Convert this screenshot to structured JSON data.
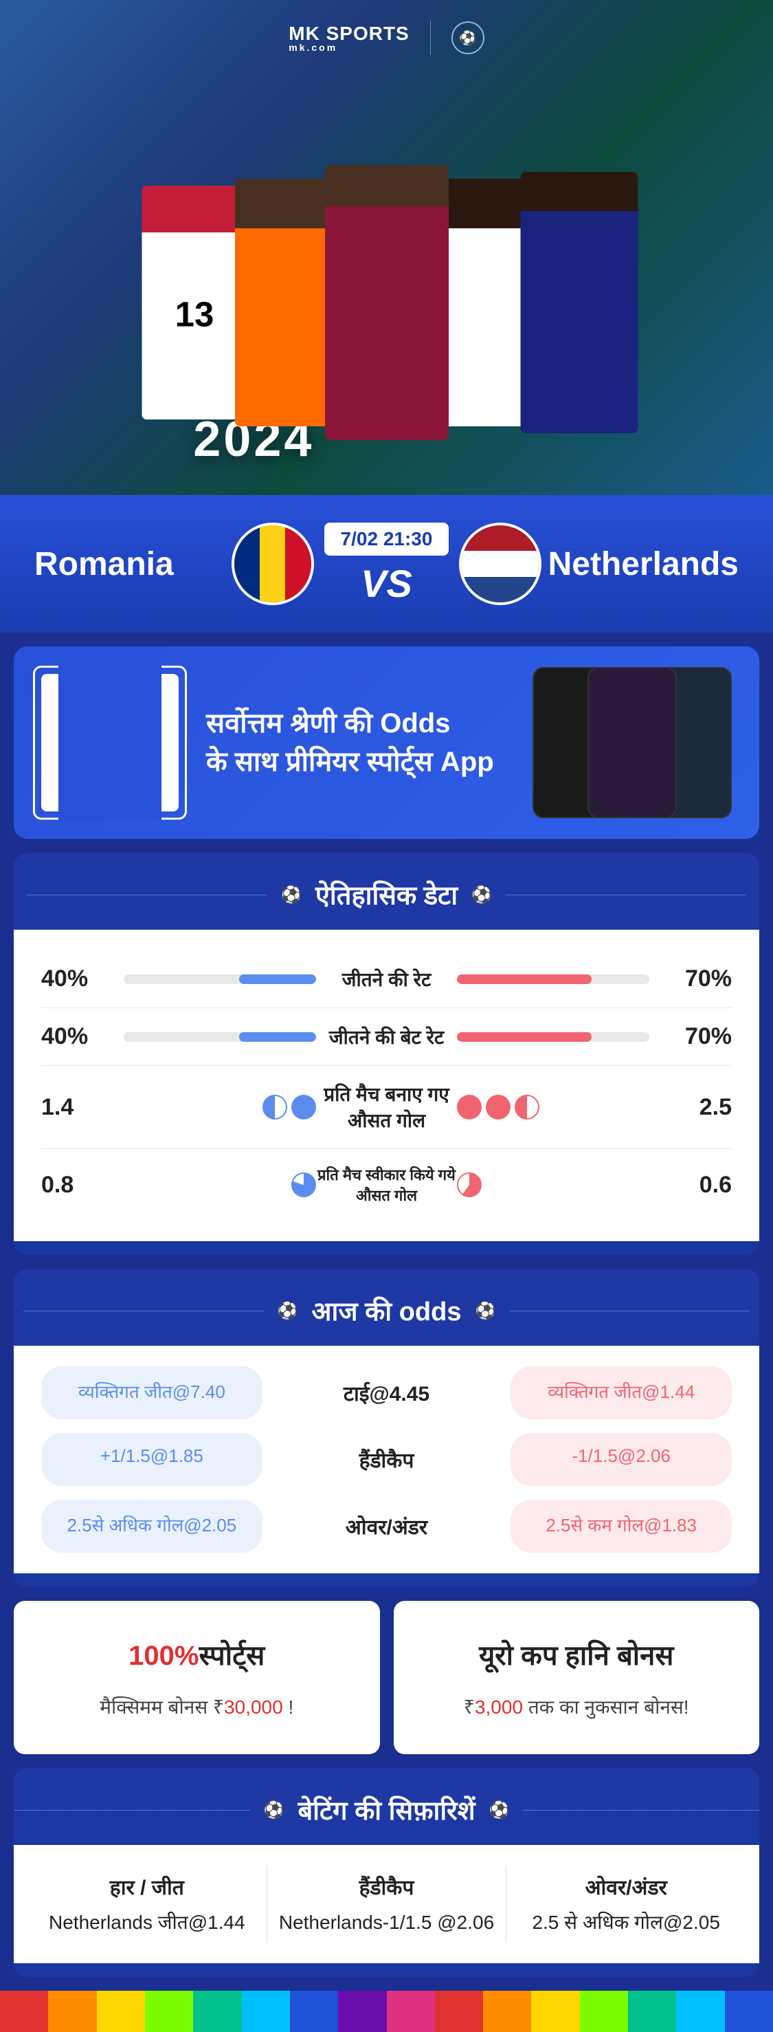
{
  "brand": {
    "name": "MK",
    "tagline": "SPORTS",
    "sub": "mk.com"
  },
  "hero": {
    "title": "UEFA EURO 2024",
    "jersey": "13"
  },
  "match": {
    "team1": "Romania",
    "team2": "Netherlands",
    "datetime": "7/02 21:30",
    "vs": "VS",
    "flag1_colors": [
      "#002b7f",
      "#fcd116",
      "#ce1126"
    ],
    "flag2_colors": [
      "#ae1c28",
      "#ffffff",
      "#21468b"
    ]
  },
  "promo": {
    "line1": "सर्वोत्तम श्रेणी की Odds",
    "line2": "के साथ प्रीमियर स्पोर्ट्स App"
  },
  "sections": {
    "historical": "ऐतिहासिक डेटा",
    "odds": "आज की odds",
    "recommendations": "बेटिंग की सिफ़ारिशें"
  },
  "historical": {
    "rows": [
      {
        "left_val": "40%",
        "left_pct": 40,
        "label": "जीतने की रेट",
        "right_val": "70%",
        "right_pct": 70,
        "type": "bar"
      },
      {
        "left_val": "40%",
        "left_pct": 40,
        "label": "जीतने की बेट रेट",
        "right_val": "70%",
        "right_pct": 70,
        "type": "bar"
      },
      {
        "left_val": "1.4",
        "label": "प्रति मैच बनाए गए औसत गोल",
        "right_val": "2.5",
        "type": "balls",
        "left_balls": [
          "half-blue",
          "full-blue"
        ],
        "right_balls": [
          "full-red",
          "full-red",
          "half-red"
        ]
      },
      {
        "left_val": "0.8",
        "label": "प्रति मैच स्वीकार किये गये औसत गोल",
        "right_val": "0.6",
        "type": "balls",
        "left_balls": [
          "partial-blue"
        ],
        "right_balls": [
          "partial-red"
        ],
        "small": true
      }
    ]
  },
  "odds": {
    "rows": [
      {
        "left": "व्यक्तिगत जीत@7.40",
        "mid": "टाई@4.45",
        "right": "व्यक्तिगत जीत@1.44"
      },
      {
        "left": "+1/1.5@1.85",
        "mid": "हैंडीकैप",
        "right": "-1/1.5@2.06"
      },
      {
        "left": "2.5से अधिक गोल@2.05",
        "mid": "ओवर/अंडर",
        "right": "2.5से कम गोल@1.83"
      }
    ]
  },
  "bonuses": [
    {
      "title_red": "100%",
      "title": "स्पोर्ट्स",
      "sub_pre": "मैक्सिमम बोनस  ₹",
      "sub_red": "30,000",
      "sub_post": " !"
    },
    {
      "title_red": "",
      "title": "यूरो कप हानि बोनस",
      "sub_pre": "₹",
      "sub_red": "3,000",
      "sub_post": " तक का नुकसान बोनस!"
    }
  ],
  "recommendations": [
    {
      "label": "हार / जीत",
      "value": "Netherlands जीत@1.44"
    },
    {
      "label": "हैंडीकैप",
      "value": "Netherlands-1/1.5 @2.06"
    },
    {
      "label": "ओवर/अंडर",
      "value": "2.5 से अधिक गोल@2.05"
    }
  ],
  "rainbow": [
    "#e03030",
    "#ff8c00",
    "#ffd700",
    "#7cfc00",
    "#00c08b",
    "#00bfff",
    "#1e50d8",
    "#6a0dad",
    "#e03080",
    "#e03030",
    "#ff8c00",
    "#ffd700",
    "#7cfc00",
    "#00c08b",
    "#00bfff",
    "#1e50d8"
  ],
  "colors": {
    "blue": "#5b8def",
    "red": "#f06570",
    "brand_blue": "#2850d8",
    "bg": "#1a2f8f"
  }
}
